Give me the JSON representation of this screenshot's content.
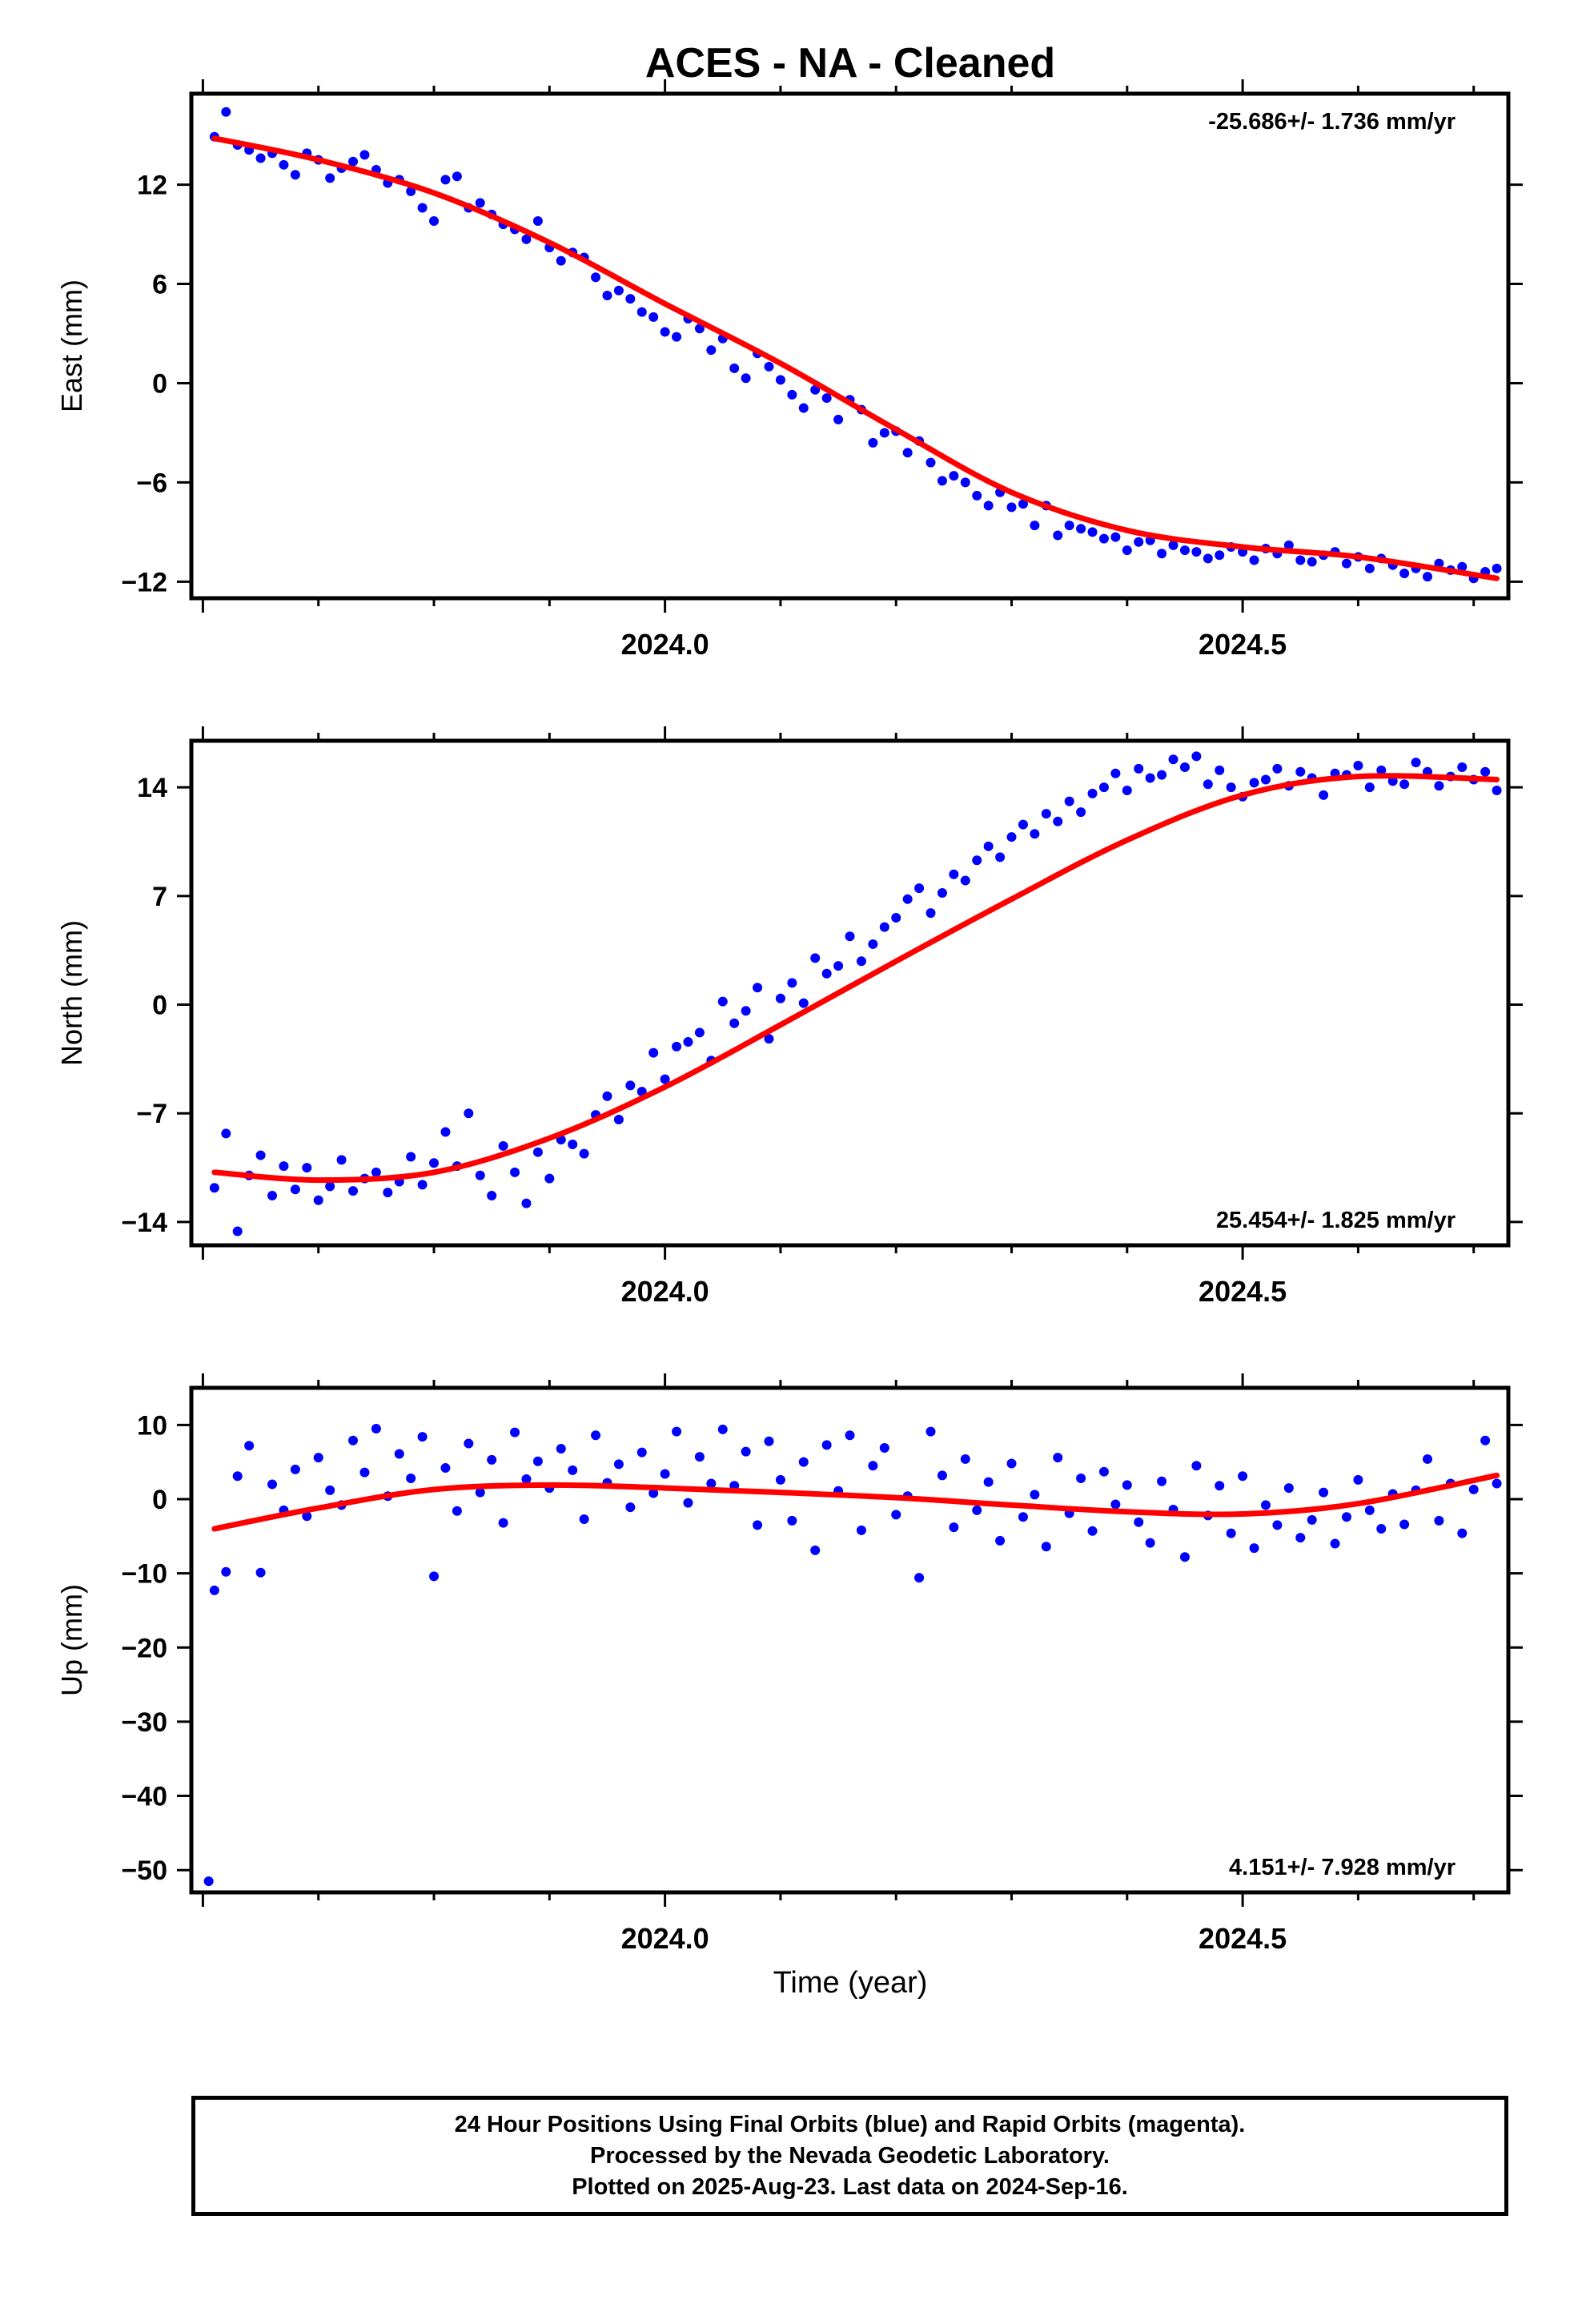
{
  "figure": {
    "title": "ACES  - NA - Cleaned",
    "xlabel": "Time (year)",
    "caption": [
      "24 Hour Positions Using Final Orbits (blue) and Rapid Orbits (magenta).",
      "Processed by the Nevada Geodetic Laboratory.",
      "Plotted on 2025-Aug-23. Last data on 2024-Sep-16."
    ]
  },
  "colors": {
    "points": "#0000ff",
    "fit": "#ff0000",
    "axes": "#000000"
  },
  "chart_data": [
    {
      "type": "scatter",
      "component": "East",
      "ylabel": "East (mm)",
      "rate_label": "-25.686+/- 1.736 mm/yr",
      "rate_position": "top-right",
      "xlim": [
        2023.59,
        2024.73
      ],
      "ylim": [
        -13.0,
        17.5
      ],
      "x_ticks": [
        2024.0,
        2024.5
      ],
      "x_tick_labels": [
        "2024.0",
        "2024.5"
      ],
      "y_ticks": [
        12,
        6,
        0,
        -6,
        -12
      ],
      "y_tick_labels": [
        "12",
        "6",
        "0",
        "−6",
        "−12"
      ],
      "grid": false,
      "fit_curve": {
        "x": [
          2023.61,
          2023.7,
          2023.8,
          2023.9,
          2024.0,
          2024.1,
          2024.2,
          2024.3,
          2024.4,
          2024.5,
          2024.6,
          2024.72
        ],
        "y": [
          14.8,
          13.5,
          11.5,
          8.5,
          4.8,
          1.2,
          -2.8,
          -6.6,
          -8.9,
          -9.9,
          -10.5,
          -11.8
        ]
      },
      "series": [
        {
          "name": "Final Orbits",
          "x": [
            2023.61,
            2023.62,
            2023.63,
            2023.64,
            2023.65,
            2023.66,
            2023.67,
            2023.68,
            2023.69,
            2023.7,
            2023.71,
            2023.72,
            2023.73,
            2023.74,
            2023.75,
            2023.76,
            2023.77,
            2023.78,
            2023.79,
            2023.8,
            2023.81,
            2023.82,
            2023.83,
            2023.84,
            2023.85,
            2023.86,
            2023.87,
            2023.88,
            2023.89,
            2023.9,
            2023.91,
            2023.92,
            2023.93,
            2023.94,
            2023.95,
            2023.96,
            2023.97,
            2023.98,
            2023.99,
            2024.0,
            2024.01,
            2024.02,
            2024.03,
            2024.04,
            2024.05,
            2024.06,
            2024.07,
            2024.08,
            2024.09,
            2024.1,
            2024.11,
            2024.12,
            2024.13,
            2024.14,
            2024.15,
            2024.16,
            2024.17,
            2024.18,
            2024.19,
            2024.2,
            2024.21,
            2024.22,
            2024.23,
            2024.24,
            2024.25,
            2024.26,
            2024.27,
            2024.28,
            2024.29,
            2024.3,
            2024.31,
            2024.32,
            2024.33,
            2024.34,
            2024.35,
            2024.36,
            2024.37,
            2024.38,
            2024.39,
            2024.4,
            2024.41,
            2024.42,
            2024.43,
            2024.44,
            2024.45,
            2024.46,
            2024.47,
            2024.48,
            2024.49,
            2024.5,
            2024.51,
            2024.52,
            2024.53,
            2024.54,
            2024.55,
            2024.56,
            2024.57,
            2024.58,
            2024.59,
            2024.6,
            2024.61,
            2024.62,
            2024.63,
            2024.64,
            2024.65,
            2024.66,
            2024.67,
            2024.68,
            2024.69,
            2024.7,
            2024.71,
            2024.72
          ],
          "y": [
            14.9,
            16.4,
            14.4,
            14.1,
            13.6,
            13.9,
            13.2,
            12.6,
            13.9,
            13.5,
            12.4,
            13.0,
            13.4,
            13.8,
            12.9,
            12.1,
            12.3,
            11.6,
            10.6,
            9.8,
            12.3,
            12.5,
            10.6,
            10.9,
            10.2,
            9.6,
            9.3,
            8.7,
            9.8,
            8.2,
            7.4,
            7.9,
            7.6,
            6.4,
            5.3,
            5.6,
            5.1,
            4.3,
            4.0,
            3.1,
            2.8,
            3.9,
            3.3,
            2.0,
            2.7,
            0.9,
            0.3,
            1.8,
            1.0,
            0.2,
            -0.7,
            -1.5,
            -0.4,
            -0.9,
            -2.2,
            -1.0,
            -1.6,
            -3.6,
            -3.0,
            -2.9,
            -4.2,
            -3.5,
            -4.8,
            -5.9,
            -5.6,
            -6.0,
            -6.8,
            -7.4,
            -6.6,
            -7.5,
            -7.3,
            -8.6,
            -7.4,
            -9.2,
            -8.6,
            -8.8,
            -9.0,
            -9.4,
            -9.3,
            -10.1,
            -9.6,
            -9.5,
            -10.3,
            -9.8,
            -10.1,
            -10.2,
            -10.6,
            -10.4,
            -9.9,
            -10.2,
            -10.7,
            -10.0,
            -10.3,
            -9.8,
            -10.7,
            -10.8,
            -10.4,
            -10.2,
            -10.9,
            -10.5,
            -11.2,
            -10.6,
            -11.0,
            -11.5,
            -11.2,
            -11.7,
            -10.9,
            -11.3,
            -11.1,
            -11.8,
            -11.4,
            -11.2
          ]
        }
      ]
    },
    {
      "type": "scatter",
      "component": "North",
      "ylabel": "North (mm)",
      "rate_label": "25.454+/- 1.825 mm/yr",
      "rate_position": "bottom-right",
      "xlim": [
        2023.59,
        2024.73
      ],
      "ylim": [
        -15.5,
        17.0
      ],
      "x_ticks": [
        2024.0,
        2024.5
      ],
      "x_tick_labels": [
        "2024.0",
        "2024.5"
      ],
      "y_ticks": [
        14,
        7,
        0,
        -7,
        -14
      ],
      "y_tick_labels": [
        "14",
        "7",
        "0",
        "−7",
        "−14"
      ],
      "grid": false,
      "fit_curve": {
        "x": [
          2023.61,
          2023.7,
          2023.8,
          2023.9,
          2024.0,
          2024.1,
          2024.2,
          2024.3,
          2024.4,
          2024.5,
          2024.6,
          2024.72
        ],
        "y": [
          -10.8,
          -11.3,
          -10.8,
          -8.6,
          -5.3,
          -1.3,
          2.8,
          6.8,
          10.6,
          13.5,
          14.7,
          14.5
        ]
      },
      "series": [
        {
          "name": "Final Orbits",
          "x": [
            2023.61,
            2023.62,
            2023.63,
            2023.64,
            2023.65,
            2023.66,
            2023.67,
            2023.68,
            2023.69,
            2023.7,
            2023.71,
            2023.72,
            2023.73,
            2023.74,
            2023.75,
            2023.76,
            2023.77,
            2023.78,
            2023.79,
            2023.8,
            2023.81,
            2023.82,
            2023.83,
            2023.84,
            2023.85,
            2023.86,
            2023.87,
            2023.88,
            2023.89,
            2023.9,
            2023.91,
            2023.92,
            2023.93,
            2023.94,
            2023.95,
            2023.96,
            2023.97,
            2023.98,
            2023.99,
            2024.0,
            2024.01,
            2024.02,
            2024.03,
            2024.04,
            2024.05,
            2024.06,
            2024.07,
            2024.08,
            2024.09,
            2024.1,
            2024.11,
            2024.12,
            2024.13,
            2024.14,
            2024.15,
            2024.16,
            2024.17,
            2024.18,
            2024.19,
            2024.2,
            2024.21,
            2024.22,
            2024.23,
            2024.24,
            2024.25,
            2024.26,
            2024.27,
            2024.28,
            2024.29,
            2024.3,
            2024.31,
            2024.32,
            2024.33,
            2024.34,
            2024.35,
            2024.36,
            2024.37,
            2024.38,
            2024.39,
            2024.4,
            2024.41,
            2024.42,
            2024.43,
            2024.44,
            2024.45,
            2024.46,
            2024.47,
            2024.48,
            2024.49,
            2024.5,
            2024.51,
            2024.52,
            2024.53,
            2024.54,
            2024.55,
            2024.56,
            2024.57,
            2024.58,
            2024.59,
            2024.6,
            2024.61,
            2024.62,
            2024.63,
            2024.64,
            2024.65,
            2024.66,
            2024.67,
            2024.68,
            2024.69,
            2024.7,
            2024.71,
            2024.72
          ],
          "y": [
            -11.8,
            -8.3,
            -14.6,
            -11.0,
            -9.7,
            -12.3,
            -10.4,
            -11.9,
            -10.5,
            -12.6,
            -11.7,
            -10.0,
            -12.0,
            -11.2,
            -10.8,
            -12.1,
            -11.4,
            -9.8,
            -11.6,
            -10.2,
            -8.2,
            -10.4,
            -7.0,
            -11.0,
            -12.3,
            -9.1,
            -10.8,
            -12.8,
            -9.5,
            -11.2,
            -8.7,
            -9.0,
            -9.6,
            -7.1,
            -5.9,
            -7.4,
            -5.2,
            -5.6,
            -3.1,
            -4.8,
            -2.7,
            -2.4,
            -1.8,
            -3.6,
            0.2,
            -1.2,
            -0.4,
            1.1,
            -2.2,
            0.4,
            1.4,
            0.1,
            3.0,
            2.0,
            2.5,
            4.4,
            2.8,
            3.9,
            5.0,
            5.6,
            6.8,
            7.5,
            5.9,
            7.2,
            8.4,
            8.0,
            9.3,
            10.2,
            9.5,
            10.8,
            11.6,
            11.0,
            12.3,
            11.8,
            13.1,
            12.4,
            13.6,
            14.0,
            14.9,
            13.8,
            15.2,
            14.6,
            14.8,
            15.8,
            15.3,
            16.0,
            14.2,
            15.1,
            14.0,
            13.4,
            14.3,
            14.5,
            15.2,
            14.1,
            15.0,
            14.6,
            13.5,
            14.9,
            14.8,
            15.4,
            14.0,
            15.1,
            14.4,
            14.2,
            15.6,
            15.0,
            14.1,
            14.7,
            15.3,
            14.5,
            15.0,
            13.8
          ]
        }
      ]
    },
    {
      "type": "scatter",
      "component": "Up",
      "ylabel": "Up (mm)",
      "rate_label": "4.151+/- 7.928 mm/yr",
      "rate_position": "bottom-right",
      "xlim": [
        2023.59,
        2024.73
      ],
      "ylim": [
        -53.0,
        15.0
      ],
      "x_ticks": [
        2024.0,
        2024.5
      ],
      "x_tick_labels": [
        "2024.0",
        "2024.5"
      ],
      "y_ticks": [
        10,
        0,
        -10,
        -20,
        -30,
        -40,
        -50
      ],
      "y_tick_labels": [
        "10",
        "0",
        "−10",
        "−20",
        "−30",
        "−40",
        "−50"
      ],
      "grid": false,
      "fit_curve": {
        "x": [
          2023.61,
          2023.7,
          2023.8,
          2023.9,
          2024.0,
          2024.1,
          2024.2,
          2024.3,
          2024.4,
          2024.5,
          2024.6,
          2024.72
        ],
        "y": [
          -4.0,
          -1.2,
          1.3,
          1.9,
          1.5,
          0.9,
          0.2,
          -0.8,
          -1.7,
          -2.0,
          -0.6,
          3.2
        ]
      },
      "series": [
        {
          "name": "Final Orbits",
          "x": [
            2023.605,
            2023.61,
            2023.62,
            2023.63,
            2023.64,
            2023.65,
            2023.66,
            2023.67,
            2023.68,
            2023.69,
            2023.7,
            2023.71,
            2023.72,
            2023.73,
            2023.74,
            2023.75,
            2023.76,
            2023.77,
            2023.78,
            2023.79,
            2023.8,
            2023.81,
            2023.82,
            2023.83,
            2023.84,
            2023.85,
            2023.86,
            2023.87,
            2023.88,
            2023.89,
            2023.9,
            2023.91,
            2023.92,
            2023.93,
            2023.94,
            2023.95,
            2023.96,
            2023.97,
            2023.98,
            2023.99,
            2024.0,
            2024.01,
            2024.02,
            2024.03,
            2024.04,
            2024.05,
            2024.06,
            2024.07,
            2024.08,
            2024.09,
            2024.1,
            2024.11,
            2024.12,
            2024.13,
            2024.14,
            2024.15,
            2024.16,
            2024.17,
            2024.18,
            2024.19,
            2024.2,
            2024.21,
            2024.22,
            2024.23,
            2024.24,
            2024.25,
            2024.26,
            2024.27,
            2024.28,
            2024.29,
            2024.3,
            2024.31,
            2024.32,
            2024.33,
            2024.34,
            2024.35,
            2024.36,
            2024.37,
            2024.38,
            2024.39,
            2024.4,
            2024.41,
            2024.42,
            2024.43,
            2024.44,
            2024.45,
            2024.46,
            2024.47,
            2024.48,
            2024.49,
            2024.5,
            2024.51,
            2024.52,
            2024.53,
            2024.54,
            2024.55,
            2024.56,
            2024.57,
            2024.58,
            2024.59,
            2024.6,
            2024.61,
            2024.62,
            2024.63,
            2024.64,
            2024.65,
            2024.66,
            2024.67,
            2024.68,
            2024.69,
            2024.7,
            2024.71,
            2024.72
          ],
          "y": [
            -51.5,
            -12.3,
            -9.8,
            3.1,
            7.2,
            -9.9,
            2.0,
            -1.5,
            4.0,
            -2.3,
            5.6,
            1.2,
            -0.8,
            7.9,
            3.6,
            9.5,
            0.4,
            6.1,
            2.8,
            8.4,
            -10.4,
            4.2,
            -1.6,
            7.5,
            0.9,
            5.3,
            -3.2,
            9.0,
            2.7,
            5.1,
            1.5,
            6.8,
            3.9,
            -2.7,
            8.6,
            2.2,
            4.7,
            -1.1,
            6.3,
            0.8,
            3.4,
            9.1,
            -0.5,
            5.7,
            2.1,
            9.4,
            1.8,
            6.4,
            -3.5,
            7.8,
            2.6,
            -2.9,
            5.0,
            -6.9,
            7.3,
            1.1,
            8.6,
            -4.2,
            4.5,
            6.9,
            -2.1,
            0.4,
            -10.6,
            9.1,
            3.2,
            -3.8,
            5.4,
            -1.5,
            2.3,
            -5.6,
            4.8,
            -2.4,
            0.6,
            -6.4,
            5.6,
            -1.9,
            2.8,
            -4.3,
            3.7,
            -0.7,
            1.9,
            -3.1,
            -5.9,
            2.4,
            -1.4,
            -7.8,
            4.5,
            -2.2,
            1.8,
            -4.6,
            3.1,
            -6.6,
            -0.8,
            -3.5,
            1.5,
            -5.2,
            -2.8,
            0.9,
            -6.0,
            -2.4,
            2.6,
            -1.5,
            -4.0,
            0.7,
            -3.4,
            1.2,
            5.4,
            -2.9,
            2.1,
            -4.6,
            1.3,
            7.9,
            2.1
          ]
        }
      ]
    }
  ]
}
